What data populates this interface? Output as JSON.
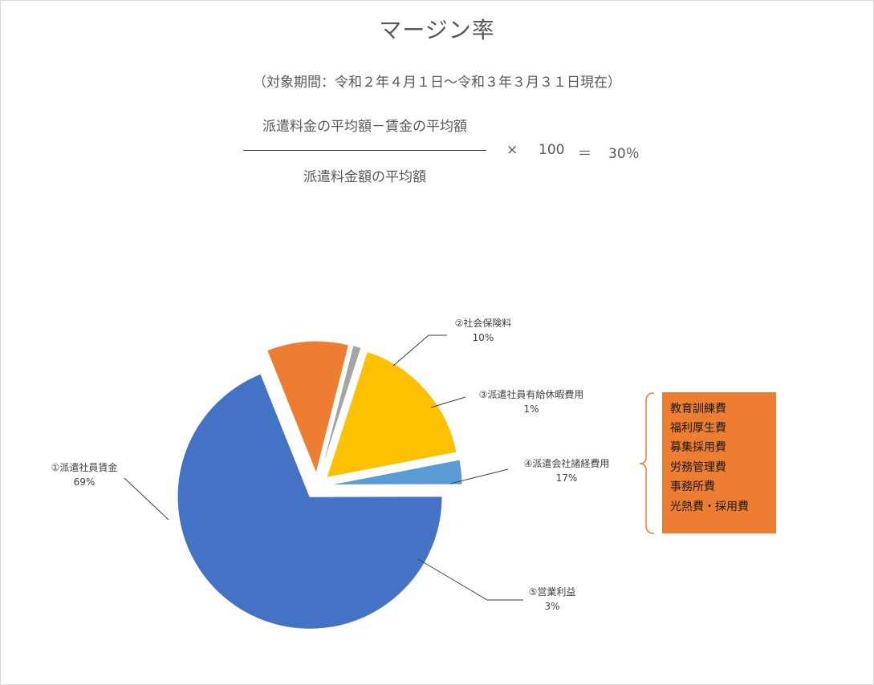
{
  "title": "マージン率",
  "period": "（対象期間：令和２年４月１日～令和３年３月３１日現在）",
  "formula": {
    "numerator": "派遣料金の平均額－賃金の平均額",
    "denominator": "派遣料金額の平均額",
    "times": "×",
    "hundred": "100",
    "equals": "＝",
    "result": "30％"
  },
  "cost_items_box": {
    "color": "#ed7d31",
    "items": [
      "教育訓練費",
      "福利厚生費",
      "募集採用費",
      "労務管理費",
      "事務所費",
      "光熱費・採用費"
    ]
  },
  "chart_data": {
    "type": "pie",
    "title": "",
    "exploded": true,
    "slices": [
      {
        "label": "①派遣社員賃金",
        "value": 69,
        "pct_label": "69%",
        "color": "#4472c4"
      },
      {
        "label": "②社会保険料",
        "value": 10,
        "pct_label": "10%",
        "color": "#ed7d31"
      },
      {
        "label": "③派遣社員有給休暇費用",
        "value": 1,
        "pct_label": "1%",
        "color": "#a5a5a5"
      },
      {
        "label": "④派遣会社諸経費用",
        "value": 17,
        "pct_label": "17%",
        "color": "#ffc000"
      },
      {
        "label": "⑤営業利益",
        "value": 3,
        "pct_label": "3%",
        "color": "#5b9bd5"
      }
    ]
  }
}
